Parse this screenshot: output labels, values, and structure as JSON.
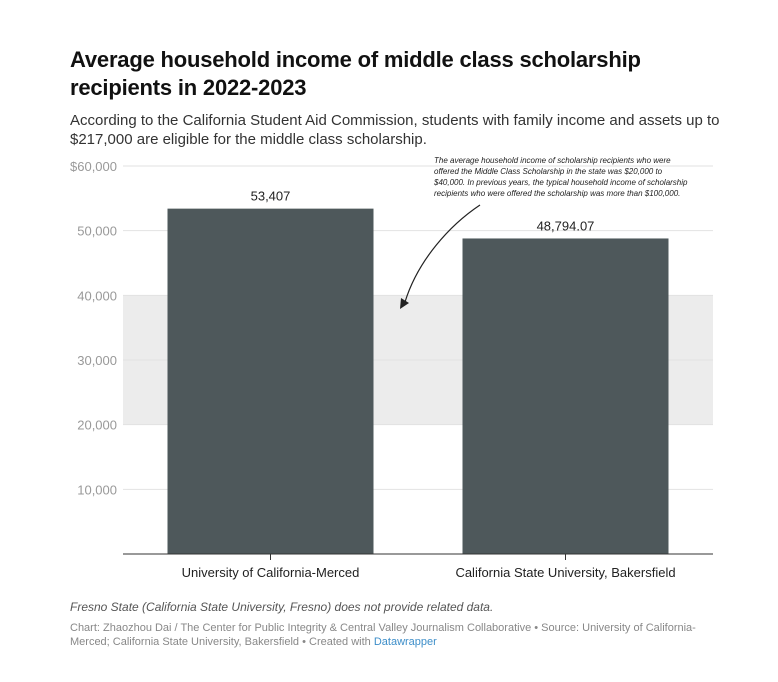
{
  "header": {
    "title": "Average household income of middle class scholarship recipients in 2022-2023",
    "subtitle": "According to the California Student Aid Commission, students with family income and assets up to $217,000 are eligible for the middle class scholarship."
  },
  "chart_data": {
    "type": "bar",
    "categories": [
      "University of California-Merced",
      "California State University, Bakersfield"
    ],
    "values": [
      53407,
      48794.07
    ],
    "value_labels": [
      "53,407",
      "48,794.07"
    ],
    "ylim": [
      0,
      60000
    ],
    "yticks": [
      10000,
      20000,
      30000,
      40000,
      50000,
      60000
    ],
    "ytick_labels": [
      "10,000",
      "20,000",
      "30,000",
      "40,000",
      "50,000",
      "$60,000"
    ],
    "shaded_band": [
      20000,
      40000
    ],
    "bar_color": "#4e585b",
    "band_color": "#ececec",
    "grid": true,
    "annotation": "The average household income of scholarship recipients who were offered the Middle Class Scholarship in the state was $20,000 to $40,000. In previous years, the typical household income of scholarship recipients who were offered the scholarship was more than $100,000.",
    "annotation_lines": [
      "The average household income of scholarship recipients who were",
      "offered the Middle Class Scholarship in the state was $20,000 to",
      "$40,000. In previous years, the typical household income of scholarship",
      "recipients who were offered the scholarship was more than $100,000."
    ]
  },
  "footer": {
    "note": "Fresno State (California State University, Fresno) does not provide related data.",
    "credit_text": "Chart: Zhaozhou Dai / The Center for Public Integrity & Central Valley Journalism Collaborative  • Source: University of California-Merced; California State University, Bakersfield • Created with ",
    "credit_link": "Datawrapper"
  }
}
